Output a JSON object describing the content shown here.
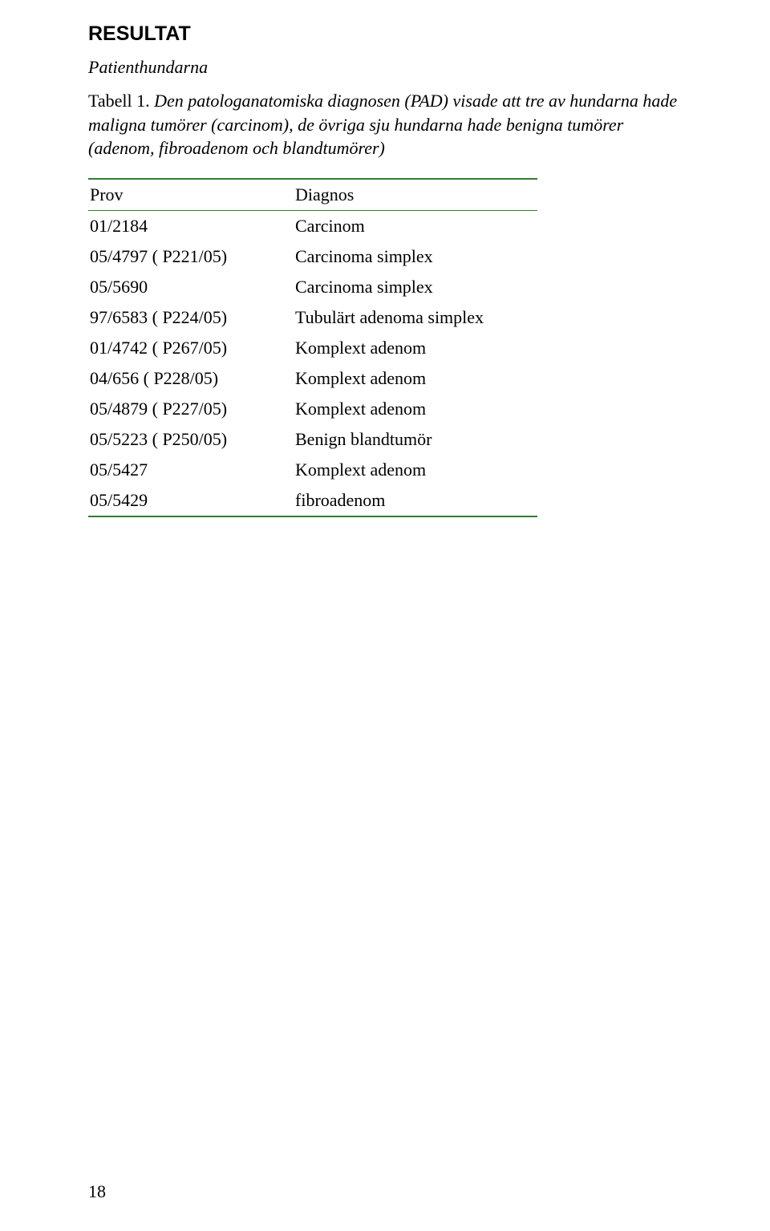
{
  "title": "RESULTAT",
  "subtitle": "Patienthundarna",
  "caption": {
    "lead": "Tabell 1.",
    "body": "Den patologanatomiska diagnosen (PAD) visade att tre av hundarna hade maligna tumörer (carcinom), de övriga sju hundarna hade benigna tumörer (adenom, fibroadenom och blandtumörer)"
  },
  "table": {
    "rule_color": "#2e7d32",
    "columns": [
      "Prov",
      "Diagnos"
    ],
    "rows": [
      [
        "01/2184",
        "Carcinom"
      ],
      [
        "05/4797 ( P221/05)",
        "Carcinoma simplex"
      ],
      [
        "05/5690",
        "Carcinoma simplex"
      ],
      [
        "97/6583 ( P224/05)",
        "Tubulärt adenoma simplex"
      ],
      [
        "01/4742 ( P267/05)",
        "Komplext adenom"
      ],
      [
        "04/656   ( P228/05)",
        "Komplext adenom"
      ],
      [
        "05/4879 ( P227/05)",
        "Komplext adenom"
      ],
      [
        "05/5223 ( P250/05)",
        "Benign blandtumör"
      ],
      [
        "05/5427",
        "Komplext adenom"
      ],
      [
        "05/5429",
        "fibroadenom"
      ]
    ]
  },
  "page_number": "18"
}
